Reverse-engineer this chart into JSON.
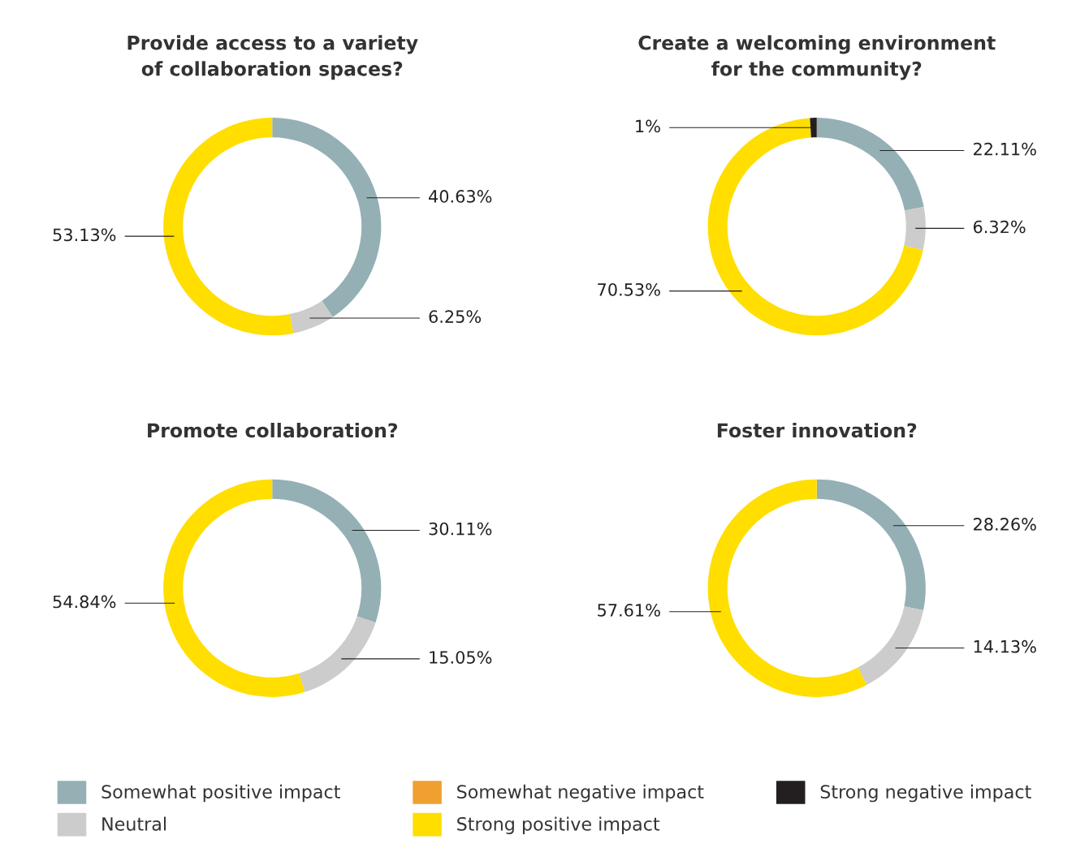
{
  "chart_data": [
    {
      "type": "donut",
      "title": "Provide access to a variety\nof collaboration spaces?",
      "categories": [
        "Somewhat positive impact",
        "Neutral",
        "Somewhat negative impact",
        "Strong positive impact",
        "Strong negative impact"
      ],
      "values": [
        40.63,
        6.25,
        0,
        53.13,
        0
      ],
      "colors": [
        "#94b0b5",
        "#cccccc",
        "#f0a030",
        "#ffde00",
        "#231f20"
      ],
      "value_labels": [
        "40.63%",
        "6.25%",
        null,
        "53.13%",
        null
      ],
      "legend": "bottom"
    },
    {
      "type": "donut",
      "title": "Create a welcoming environment\nfor the community?",
      "values": [
        22.11,
        6.32,
        0,
        70.53,
        1
      ],
      "colors": [
        "#94b0b5",
        "#cccccc",
        "#f0a030",
        "#ffde00",
        "#231f20"
      ],
      "value_labels": [
        "22.11%",
        "6.32%",
        null,
        "70.53%",
        "1%"
      ]
    },
    {
      "type": "donut",
      "title": "Promote collaboration?",
      "values": [
        30.11,
        15.05,
        0,
        54.84,
        0
      ],
      "colors": [
        "#94b0b5",
        "#cccccc",
        "#f0a030",
        "#ffde00",
        "#231f20"
      ],
      "value_labels": [
        "30.11%",
        "15.05%",
        null,
        "54.84%",
        null
      ]
    },
    {
      "type": "donut",
      "title": "Foster innovation?",
      "values": [
        28.26,
        14.13,
        0,
        57.61,
        0
      ],
      "colors": [
        "#94b0b5",
        "#cccccc",
        "#f0a030",
        "#ffde00",
        "#231f20"
      ],
      "value_labels": [
        "28.26%",
        "14.13%",
        null,
        "57.61%",
        null
      ]
    }
  ]
}
